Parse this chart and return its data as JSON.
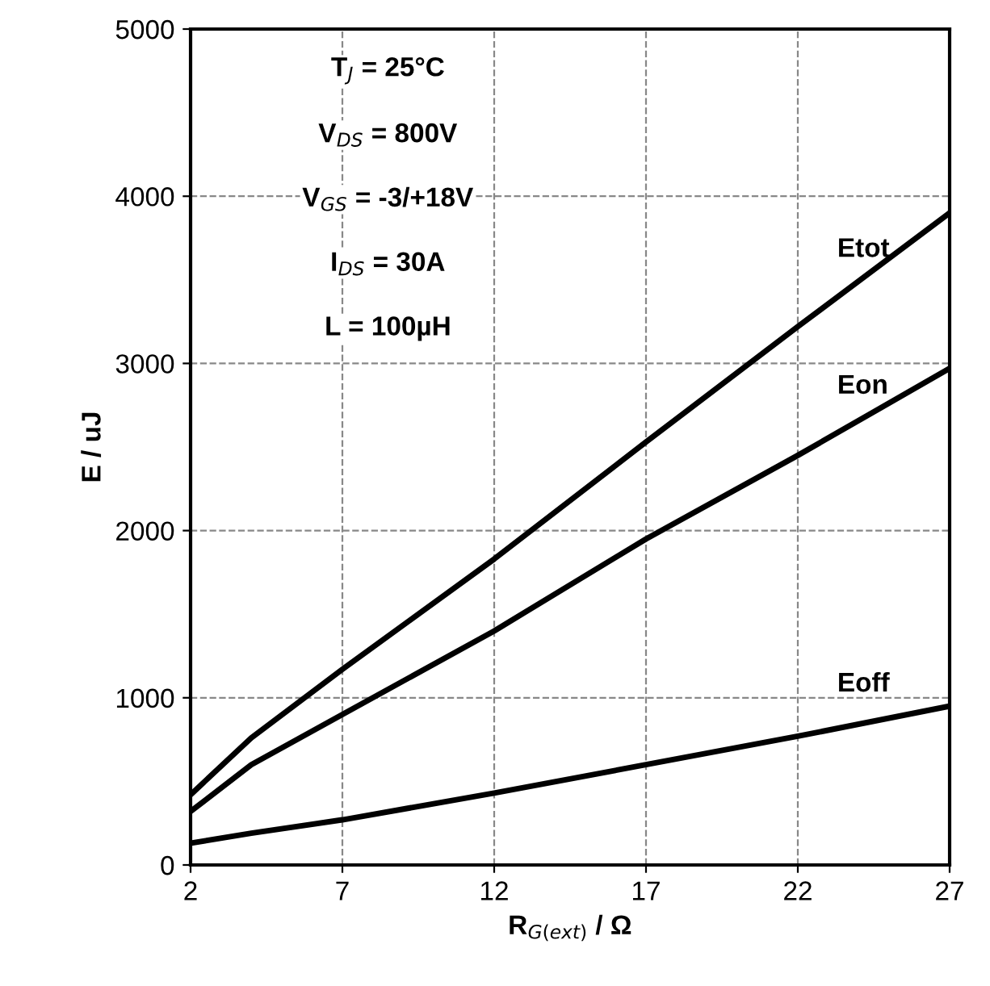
{
  "chart_data": {
    "type": "line",
    "xlabel": "R$_{G(ext)}$ / Ω",
    "ylabel": "E / uJ",
    "annotations": [
      "T$_{J}$ = 25°C",
      "V$_{DS}$ = 800V",
      "V$_{GS}$ = -3/+18V",
      "I$_{DS}$ = 30A",
      "L = 100µH"
    ],
    "x": [
      2,
      4,
      7,
      12,
      17,
      22,
      27
    ],
    "series": [
      {
        "name": "Etot",
        "color": "#000000",
        "values": [
          420,
          760,
          1170,
          1830,
          2530,
          3220,
          3900
        ]
      },
      {
        "name": "Eon",
        "color": "#000000",
        "values": [
          320,
          600,
          900,
          1400,
          1950,
          2450,
          2970
        ]
      },
      {
        "name": "Eoff",
        "color": "#000000",
        "values": [
          130,
          190,
          270,
          430,
          600,
          770,
          950
        ]
      }
    ],
    "xlim": [
      2,
      27
    ],
    "xticks": [
      2,
      7,
      12,
      17,
      22,
      27
    ],
    "ylim": [
      0,
      5000
    ],
    "yticks": [
      0,
      1000,
      2000,
      3000,
      4000,
      5000
    ],
    "grid": true,
    "legend": false,
    "marker": "none",
    "line_style": "solid"
  }
}
